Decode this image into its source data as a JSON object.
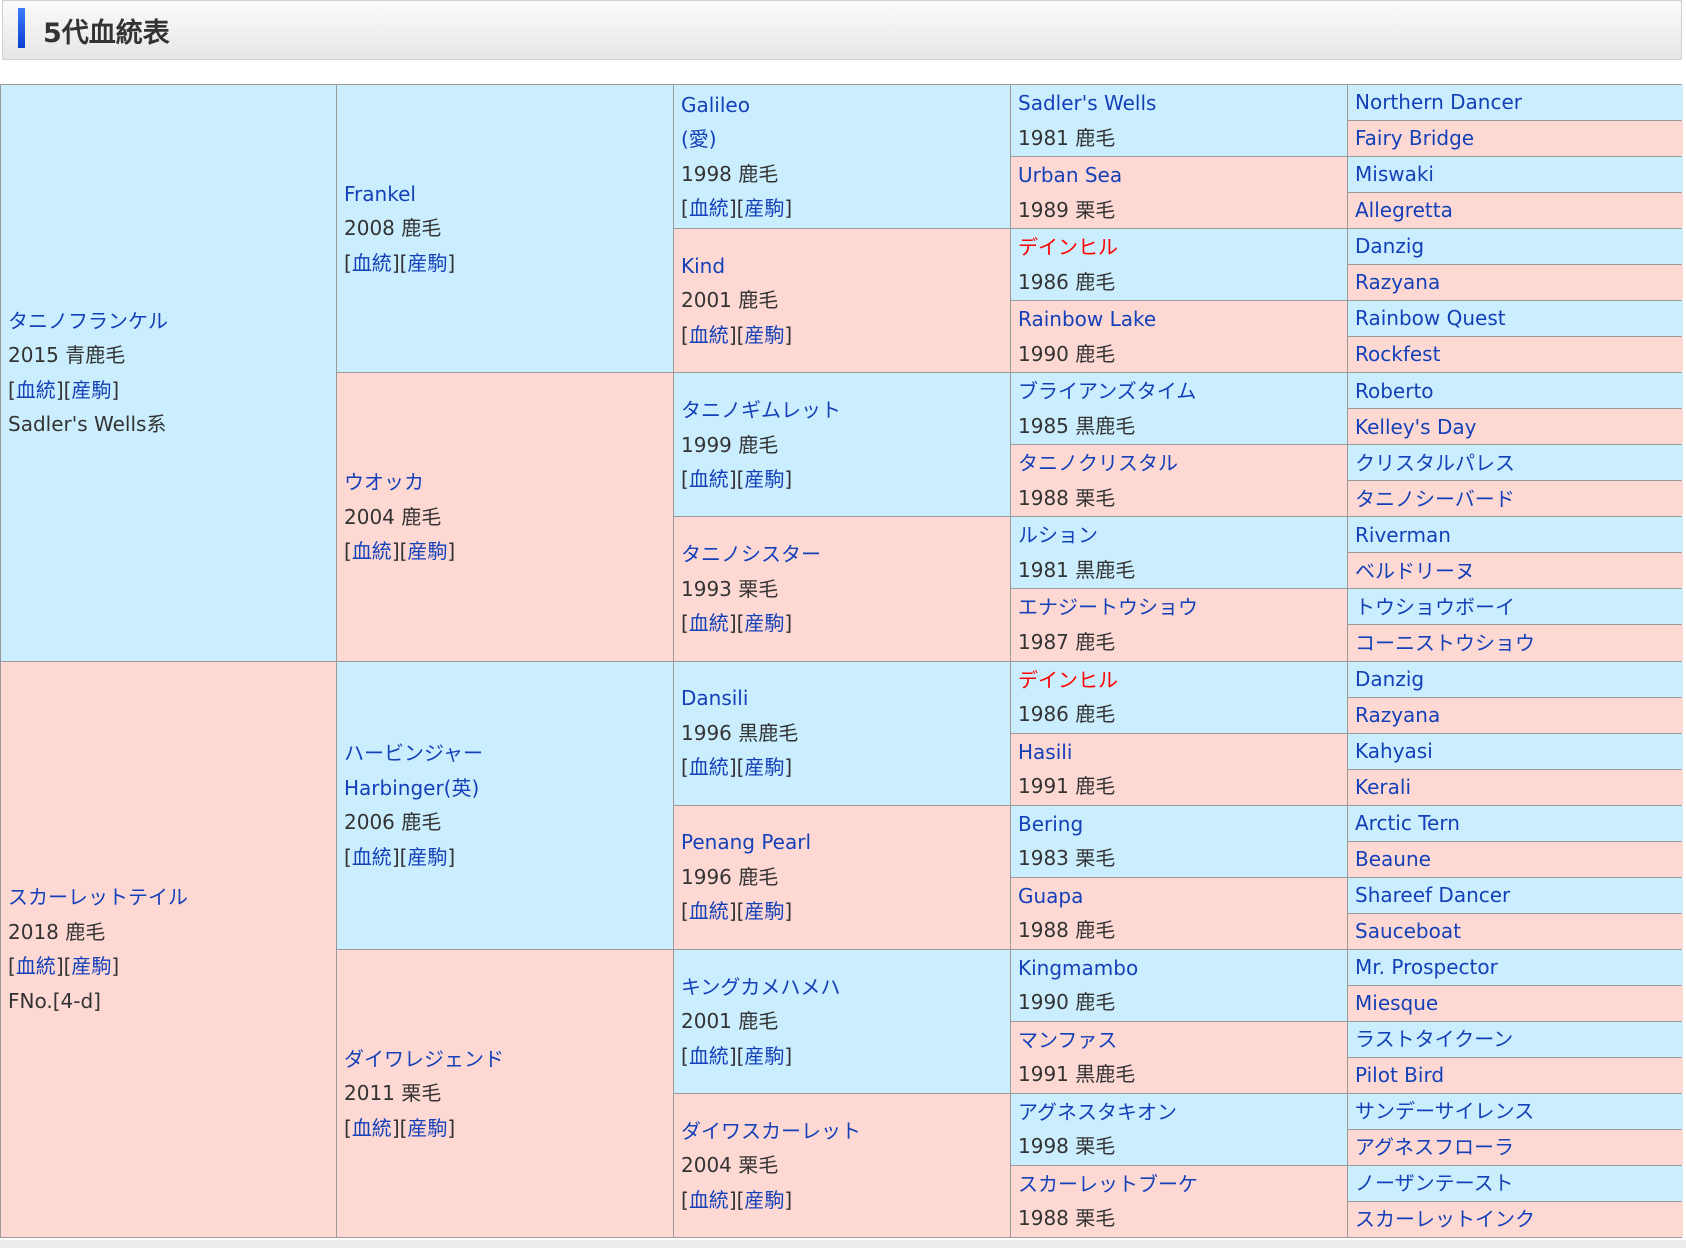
{
  "header": {
    "title": "5代血統表"
  },
  "link_labels": {
    "pedigree": "血統",
    "progeny": "産駒"
  },
  "colors": {
    "male_bg": "#caeefe",
    "female_bg": "#fed9d4",
    "link": "#1440b8",
    "highlight": "#ff0000"
  },
  "gen1": [
    {
      "name": "タニノフランケル",
      "info": "2015 青鹿毛",
      "extra": "Sadler's Wells系"
    },
    {
      "name": "スカーレットテイル",
      "info": "2018 鹿毛",
      "extra": "FNo.[4-d]"
    }
  ],
  "gen2": [
    {
      "name": "Frankel",
      "info": "2008 鹿毛"
    },
    {
      "name": "ウオッカ",
      "info": "2004 鹿毛"
    },
    {
      "name": "ハービンジャー",
      "sub": "Harbinger(英)",
      "info": "2006 鹿毛"
    },
    {
      "name": "ダイワレジェンド",
      "info": "2011 栗毛"
    }
  ],
  "gen3": [
    {
      "name": "Galileo",
      "sub": "(愛)",
      "info": "1998 鹿毛"
    },
    {
      "name": "Kind",
      "info": "2001 鹿毛"
    },
    {
      "name": "タニノギムレット",
      "info": "1999 鹿毛"
    },
    {
      "name": "タニノシスター",
      "info": "1993 栗毛"
    },
    {
      "name": "Dansili",
      "info": "1996 黒鹿毛"
    },
    {
      "name": "Penang Pearl",
      "info": "1996 鹿毛"
    },
    {
      "name": "キングカメハメハ",
      "info": "2001 鹿毛"
    },
    {
      "name": "ダイワスカーレット",
      "info": "2004 栗毛"
    }
  ],
  "gen4": [
    {
      "name": "Sadler's Wells",
      "info": "1981 鹿毛"
    },
    {
      "name": "Urban Sea",
      "info": "1989 栗毛"
    },
    {
      "name": "デインヒル",
      "info": "1986 鹿毛",
      "highlight": true
    },
    {
      "name": "Rainbow Lake",
      "info": "1990 鹿毛"
    },
    {
      "name": "ブライアンズタイム",
      "info": "1985 黒鹿毛"
    },
    {
      "name": "タニノクリスタル",
      "info": "1988 栗毛"
    },
    {
      "name": "ルション",
      "info": "1981 黒鹿毛"
    },
    {
      "name": "エナジートウショウ",
      "info": "1987 鹿毛"
    },
    {
      "name": "デインヒル",
      "info": "1986 鹿毛",
      "highlight": true
    },
    {
      "name": "Hasili",
      "info": "1991 鹿毛"
    },
    {
      "name": "Bering",
      "info": "1983 栗毛"
    },
    {
      "name": "Guapa",
      "info": "1988 鹿毛"
    },
    {
      "name": "Kingmambo",
      "info": "1990 鹿毛"
    },
    {
      "name": "マンファス",
      "info": "1991 黒鹿毛"
    },
    {
      "name": "アグネスタキオン",
      "info": "1998 栗毛"
    },
    {
      "name": "スカーレットブーケ",
      "info": "1988 栗毛"
    }
  ],
  "gen5": [
    {
      "name": "Northern Dancer"
    },
    {
      "name": "Fairy Bridge"
    },
    {
      "name": "Miswaki"
    },
    {
      "name": "Allegretta"
    },
    {
      "name": "Danzig"
    },
    {
      "name": "Razyana"
    },
    {
      "name": "Rainbow Quest"
    },
    {
      "name": "Rockfest"
    },
    {
      "name": "Roberto"
    },
    {
      "name": "Kelley's Day"
    },
    {
      "name": "クリスタルパレス"
    },
    {
      "name": "タニノシーバード"
    },
    {
      "name": "Riverman"
    },
    {
      "name": "ベルドリーヌ"
    },
    {
      "name": "トウショウボーイ"
    },
    {
      "name": "コーニストウショウ"
    },
    {
      "name": "Danzig"
    },
    {
      "name": "Razyana"
    },
    {
      "name": "Kahyasi"
    },
    {
      "name": "Kerali"
    },
    {
      "name": "Arctic Tern"
    },
    {
      "name": "Beaune"
    },
    {
      "name": "Shareef Dancer"
    },
    {
      "name": "Sauceboat"
    },
    {
      "name": "Mr. Prospector"
    },
    {
      "name": "Miesque"
    },
    {
      "name": "ラストタイクーン"
    },
    {
      "name": "Pilot Bird"
    },
    {
      "name": "サンデーサイレンス"
    },
    {
      "name": "アグネスフローラ"
    },
    {
      "name": "ノーザンテースト"
    },
    {
      "name": "スカーレットインク"
    }
  ]
}
